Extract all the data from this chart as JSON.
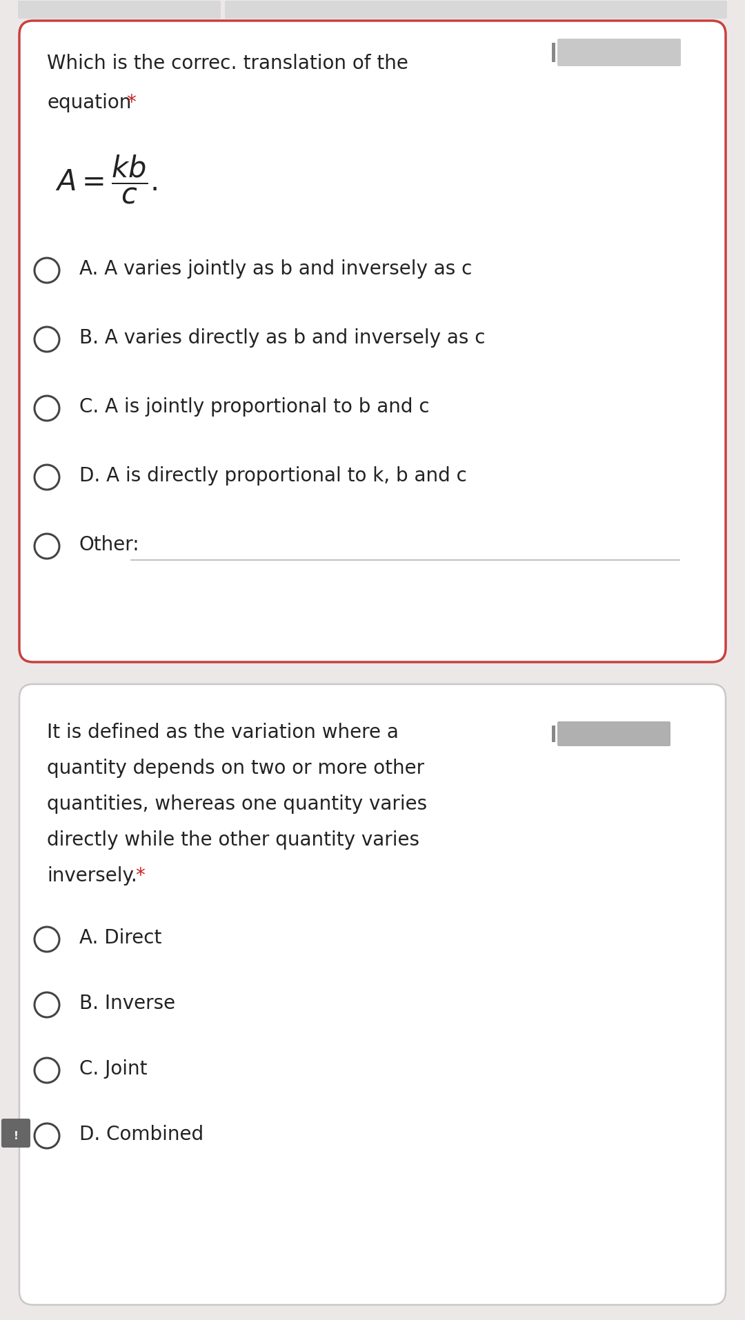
{
  "bg_color": "#ede8e8",
  "card_bg": "#ffffff",
  "card1_border": "#c94040",
  "card2_border": "#c8c8c8",
  "text_color": "#222222",
  "red_star_color": "#cc2222",
  "q1_line1": "Which is the correc․ translation of the",
  "q1_line2": "equation",
  "q1_star": "*",
  "equation_text": "$\\mathit{A} = \\dfrac{kb}{c}.$",
  "options1": [
    "A. A varies jointly as b and inversely as c",
    "B. A varies directly as b and inversely as c",
    "C. A is jointly proportional to b and c",
    "D. A is directly proportional to k, b and c",
    "Other:"
  ],
  "q2_lines": [
    "It is defined as the variation where a",
    "quantity depends on two or more other",
    "quantities, whereas one quantity varies",
    "directly while the other quantity varies",
    "inversely."
  ],
  "q2_star": "*",
  "options2": [
    "A. Direct",
    "B. Inverse",
    "C. Joint",
    "D. Combined"
  ],
  "fs_body": 20,
  "fs_eq": 30,
  "fs_opt": 20,
  "circle_r": 0.013,
  "circle_lw": 2.2,
  "circle_color": "#444444",
  "other_line_color": "#bbbbbb",
  "blur_box_color": "#c8c8c8",
  "blur_box2_color": "#b0b0b0",
  "icon_bg": "#666666"
}
